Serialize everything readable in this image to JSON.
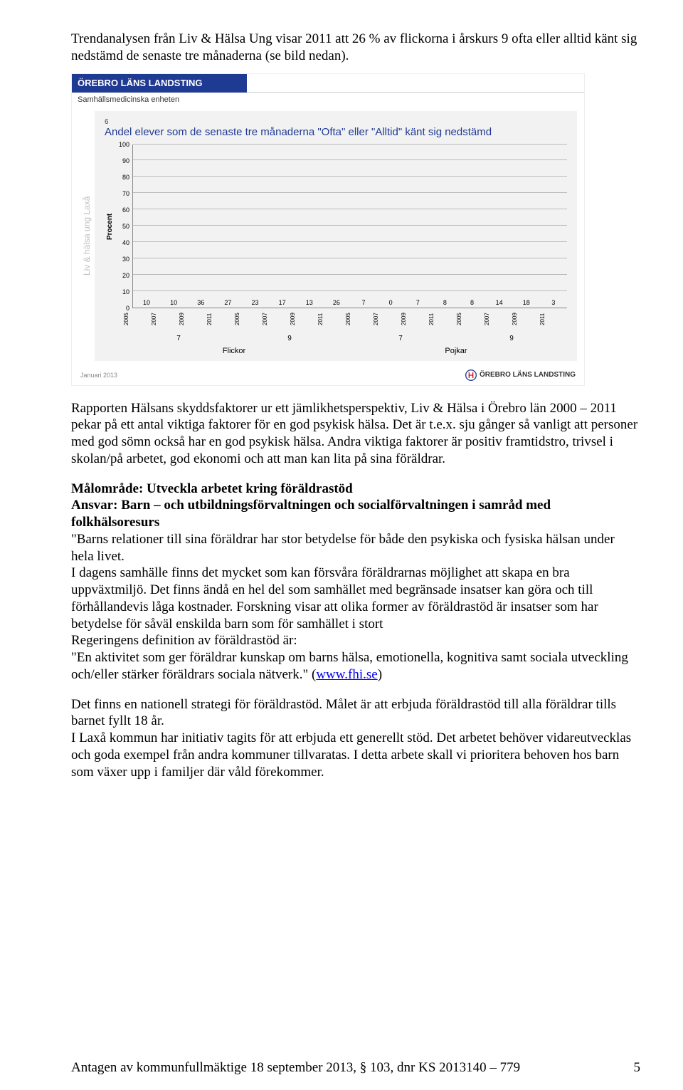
{
  "intro": "Trendanalysen från Liv & Hälsa Ung visar 2011 att 26 % av flickorna i årskurs 9 ofta eller alltid känt sig nedstämd de senaste tre månaderna (se bild nedan).",
  "slide": {
    "header_bar": "ÖREBRO LÄNS LANDSTING",
    "subheader": "Samhällsmedicinska enheten",
    "pretitle": "6",
    "title": "Andel elever som de senaste tre månaderna \"Ofta\" eller \"Alltid\" känt sig nedstämd",
    "side_note": "Liv & hälsa ung Laxå",
    "y_axis_label": "Procent",
    "y_ticks": [
      0,
      10,
      20,
      30,
      40,
      50,
      60,
      70,
      80,
      90,
      100
    ],
    "ylim": [
      0,
      100
    ],
    "bar_groups": [
      {
        "category": "Flickor",
        "grade": "7",
        "years": [
          "2005",
          "2007",
          "2009",
          "2011"
        ],
        "values": [
          10,
          10,
          36,
          27
        ],
        "colors": [
          "#d1c24a",
          "#d1c24a",
          "#d1c24a",
          "#b0a12a"
        ]
      },
      {
        "category": "Flickor",
        "grade": "9",
        "years": [
          "2005",
          "2007",
          "2009",
          "2011"
        ],
        "values": [
          23,
          17,
          13,
          26
        ],
        "colors": [
          "#d1c24a",
          "#b0a12a",
          "#d1c24a",
          "#8a7a14"
        ]
      },
      {
        "category": "Pojkar",
        "grade": "7",
        "years": [
          "2005",
          "2007",
          "2009",
          "2011"
        ],
        "values": [
          7,
          0,
          7,
          8
        ],
        "colors": [
          "#d1c24a",
          "#d1c24a",
          "#d1c24a",
          "#d1c24a"
        ]
      },
      {
        "category": "Pojkar",
        "grade": "9",
        "years": [
          "2005",
          "2007",
          "2009",
          "2011"
        ],
        "values": [
          8,
          14,
          18,
          3
        ],
        "colors": [
          "#d1c24a",
          "#bfbfbf",
          "#bfbfbf",
          "#d1c24a"
        ]
      }
    ],
    "gridline_color": "#bbbbbb",
    "chart_background": "#f2f2f2",
    "categories": [
      "Flickor",
      "Pojkar"
    ],
    "grades": [
      "7",
      "9",
      "7",
      "9"
    ],
    "footer_date": "Januari 2013",
    "footer_logo_text": "ÖREBRO LÄNS LANDSTING"
  },
  "body": {
    "p1": "Rapporten Hälsans skyddsfaktorer ur ett jämlikhetsperspektiv, Liv & Hälsa i Örebro län 2000 – 2011 pekar på ett antal viktiga faktorer för en god psykisk hälsa. Det är t.e.x. sju gånger så vanligt att personer med god sömn också har en god psykisk hälsa. Andra viktiga faktorer är positiv framtidstro, trivsel i skolan/på arbetet, god ekonomi och att man kan lita på sina föräldrar.",
    "h2_line1": "Målområde: Utveckla arbetet kring föräldrastöd",
    "h2_line2": "Ansvar: Barn – och utbildningsförvaltningen och socialförvaltningen i samråd med folkhälsoresurs",
    "p2": "\"Barns relationer till sina föräldrar har stor betydelse för både den psykiska och fysiska hälsan under hela livet.",
    "p3": "I dagens samhälle finns det mycket som kan försvåra föräldrarnas möjlighet att skapa en bra uppväxtmiljö. Det finns ändå en hel del som samhället med begränsade insatser kan göra och till förhållandevis låga kostnader. Forskning visar att olika former av föräldrastöd är insatser som har betydelse för såväl enskilda barn som för samhället i stort",
    "p4": "Regeringens definition av föräldrastöd är:",
    "p5_pre": "\"En aktivitet som ger föräldrar kunskap om barns hälsa, emotionella, kognitiva samt sociala utveckling och/eller stärker föräldrars sociala nätverk.\" (",
    "p5_link_text": "www.fhi.se",
    "p5_post": ")",
    "p6": "Det finns en nationell strategi för föräldrastöd. Målet är att erbjuda föräldrastöd till alla föräldrar tills barnet fyllt 18 år.",
    "p7": "I Laxå kommun har initiativ tagits för att erbjuda ett generellt stöd. Det arbetet behöver vidareutvecklas och goda exempel från andra kommuner tillvaratas.  I detta arbete skall vi prioritera behoven hos barn som växer upp i familjer där våld förekommer."
  },
  "footer": {
    "text": "Antagen av kommunfullmäktige 18 september 2013, § 103, dnr KS 2013140 – 779",
    "page_number": "5"
  }
}
